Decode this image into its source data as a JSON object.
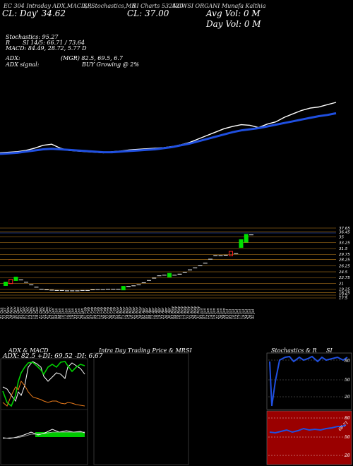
{
  "header": {
    "line1": [
      "EC 304 Intraday ADX,MACD,R",
      "SI,Stochastics,MR",
      "SI Charts 532420",
      "NCWSI ORGANI Munafa Kalthia"
    ],
    "line2_left": "CL: Day' 34.62",
    "close_label": "CL: 37.00",
    "avg_vol": "Avg Vol: 0   M",
    "day_vol": "Day Vol: 0   M"
  },
  "indicators": {
    "stochastics": "Stochastics: 95.27",
    "rsi": "SI 14/5: 66.71 / 73.64",
    "rsi_prefix": "R",
    "macd": "MACD: 84.49, 28.72, 5.77 D",
    "adx": "ADX:",
    "adx_values": "(MGR) 82.5,  69.5,  6.7",
    "adx_signal": "ADX  signal:",
    "buy_signal": "BUY Growing @ 2%"
  },
  "colors": {
    "background": "#000000",
    "price_line": "#ffffff",
    "ma_line": "#1f4fe0",
    "up_candle": "#00e000",
    "down_candle": "#ff2020",
    "level_line": "#c8861e",
    "stoch_red_panel": "#9a0000"
  },
  "chart_data": [
    {
      "type": "line",
      "panel": "price-overview",
      "series": [
        {
          "values": [
            42,
            43,
            44,
            46,
            50,
            55,
            57,
            50,
            46,
            45,
            44,
            43,
            42,
            44,
            45,
            47,
            48,
            49,
            50,
            51,
            53,
            56,
            60,
            66,
            72,
            78,
            84,
            88,
            91,
            90,
            86,
            92,
            96,
            104,
            110,
            116,
            120,
            122,
            126,
            130
          ]
        },
        {
          "values": [
            40,
            41,
            42,
            44,
            46,
            48,
            49,
            48,
            47,
            46,
            45,
            44,
            43,
            43,
            44,
            45,
            46,
            47,
            48,
            50,
            52,
            55,
            58,
            62,
            66,
            70,
            74,
            78,
            81,
            83,
            85,
            88,
            91,
            94,
            97,
            100,
            103,
            106,
            108,
            111
          ]
        }
      ]
    },
    {
      "type": "candlestick",
      "panel": "daily-price",
      "y_ticks": [
        "37.65",
        "36.45",
        "35",
        "33.25",
        "31.5",
        "29.75",
        "28.25",
        "26.25",
        "24.5",
        "22.75",
        "21",
        "19.25",
        "18.25",
        "17.5",
        "17.5"
      ],
      "x_labels": [
        "21 Oct",
        "22 Oct",
        "23 Nov",
        "28 Nov",
        "30 Nov",
        "01 Dec",
        "05 Dec",
        "07 Dec",
        "12 Dec",
        "13 Dec",
        "15 Dec",
        "19 Dec",
        "21 Dec",
        "25 Dec",
        "27 Dec",
        "29 Dec",
        "02 Jan",
        "04 Jan",
        "08 Jan",
        "10 Jan",
        "12 Jan",
        "16 Jan",
        "19 Jan",
        "23 Jan",
        "25 Jan",
        "29 Jan",
        "01 Feb",
        "05 Feb",
        "07 Feb",
        "09 Feb",
        "13 Feb",
        "16 Feb",
        "20 Feb",
        "22 Feb",
        "26 Feb",
        "29 Feb",
        "04 Mar",
        "07 Mar",
        "12 Mar",
        "14 Mar",
        "18 Mar",
        "21 Mar",
        "26 Mar",
        "28 Mar",
        "02 Apr",
        "05 Apr",
        "09 Apr",
        "12 Apr",
        "16 Apr",
        "19 Apr",
        "23 Apr",
        "26 Apr",
        "30 Apr",
        "03 May",
        "08 May",
        "10 May",
        "15 May",
        "17 May",
        "22 May",
        "24 May",
        "29 May",
        "31 May",
        "05 Jun",
        "07 Jun",
        "12 Jun",
        "14 Jun",
        "19 Jun",
        "21 Jun",
        "26 Jun",
        "28 Jun",
        "03 Jul",
        "05 Jul",
        "10 Jul",
        "12 Jul",
        "17 Jul",
        "19 Jul",
        "24 Jul",
        "26 Jul",
        "31 Jul"
      ],
      "close": [
        20.9,
        21.6,
        22.4,
        22.1,
        21.4,
        20.6,
        19.9,
        19.3,
        19.1,
        19.0,
        18.9,
        18.9,
        18.8,
        18.8,
        18.8,
        18.9,
        18.9,
        19.1,
        19.2,
        19.2,
        19.3,
        19.3,
        19.3,
        19.6,
        20.1,
        20.3,
        20.6,
        21.2,
        21.9,
        22.6,
        23.3,
        23.5,
        23.5,
        23.5,
        23.8,
        24.4,
        25.1,
        25.7,
        26.3,
        27.1,
        28.3,
        29.4,
        29.4,
        29.5,
        30.0,
        30.0,
        33.0,
        34.6,
        35.6
      ],
      "direction": [
        "up",
        "down",
        "up",
        "flat",
        "flat",
        "flat",
        "flat",
        "flat",
        "flat",
        "flat",
        "flat",
        "flat",
        "flat",
        "flat",
        "flat",
        "flat",
        "flat",
        "flat",
        "flat",
        "flat",
        "flat",
        "flat",
        "flat",
        "up",
        "flat",
        "flat",
        "flat",
        "flat",
        "flat",
        "flat",
        "flat",
        "flat",
        "up",
        "flat",
        "flat",
        "flat",
        "flat",
        "flat",
        "flat",
        "flat",
        "flat",
        "flat",
        "flat",
        "flat",
        "down",
        "flat",
        "up",
        "up",
        "flat"
      ]
    }
  ],
  "panels": {
    "adx_macd_title": "ADX  & MACD",
    "adx_legend": "ADX: 82.5  +DI: 69.52  -DI: 6.67",
    "intraday_title": "Intra  Day Trading Price  & MR",
    "intraday_suffix": "SI",
    "stoch_title": "Stochastics & R",
    "stoch_suffix": "SI",
    "stoch_ticks_top": [
      "80",
      "50",
      "20"
    ],
    "stoch_ticks_bottom": [
      "80",
      "50",
      "20"
    ],
    "stoch_value": "66.71"
  }
}
